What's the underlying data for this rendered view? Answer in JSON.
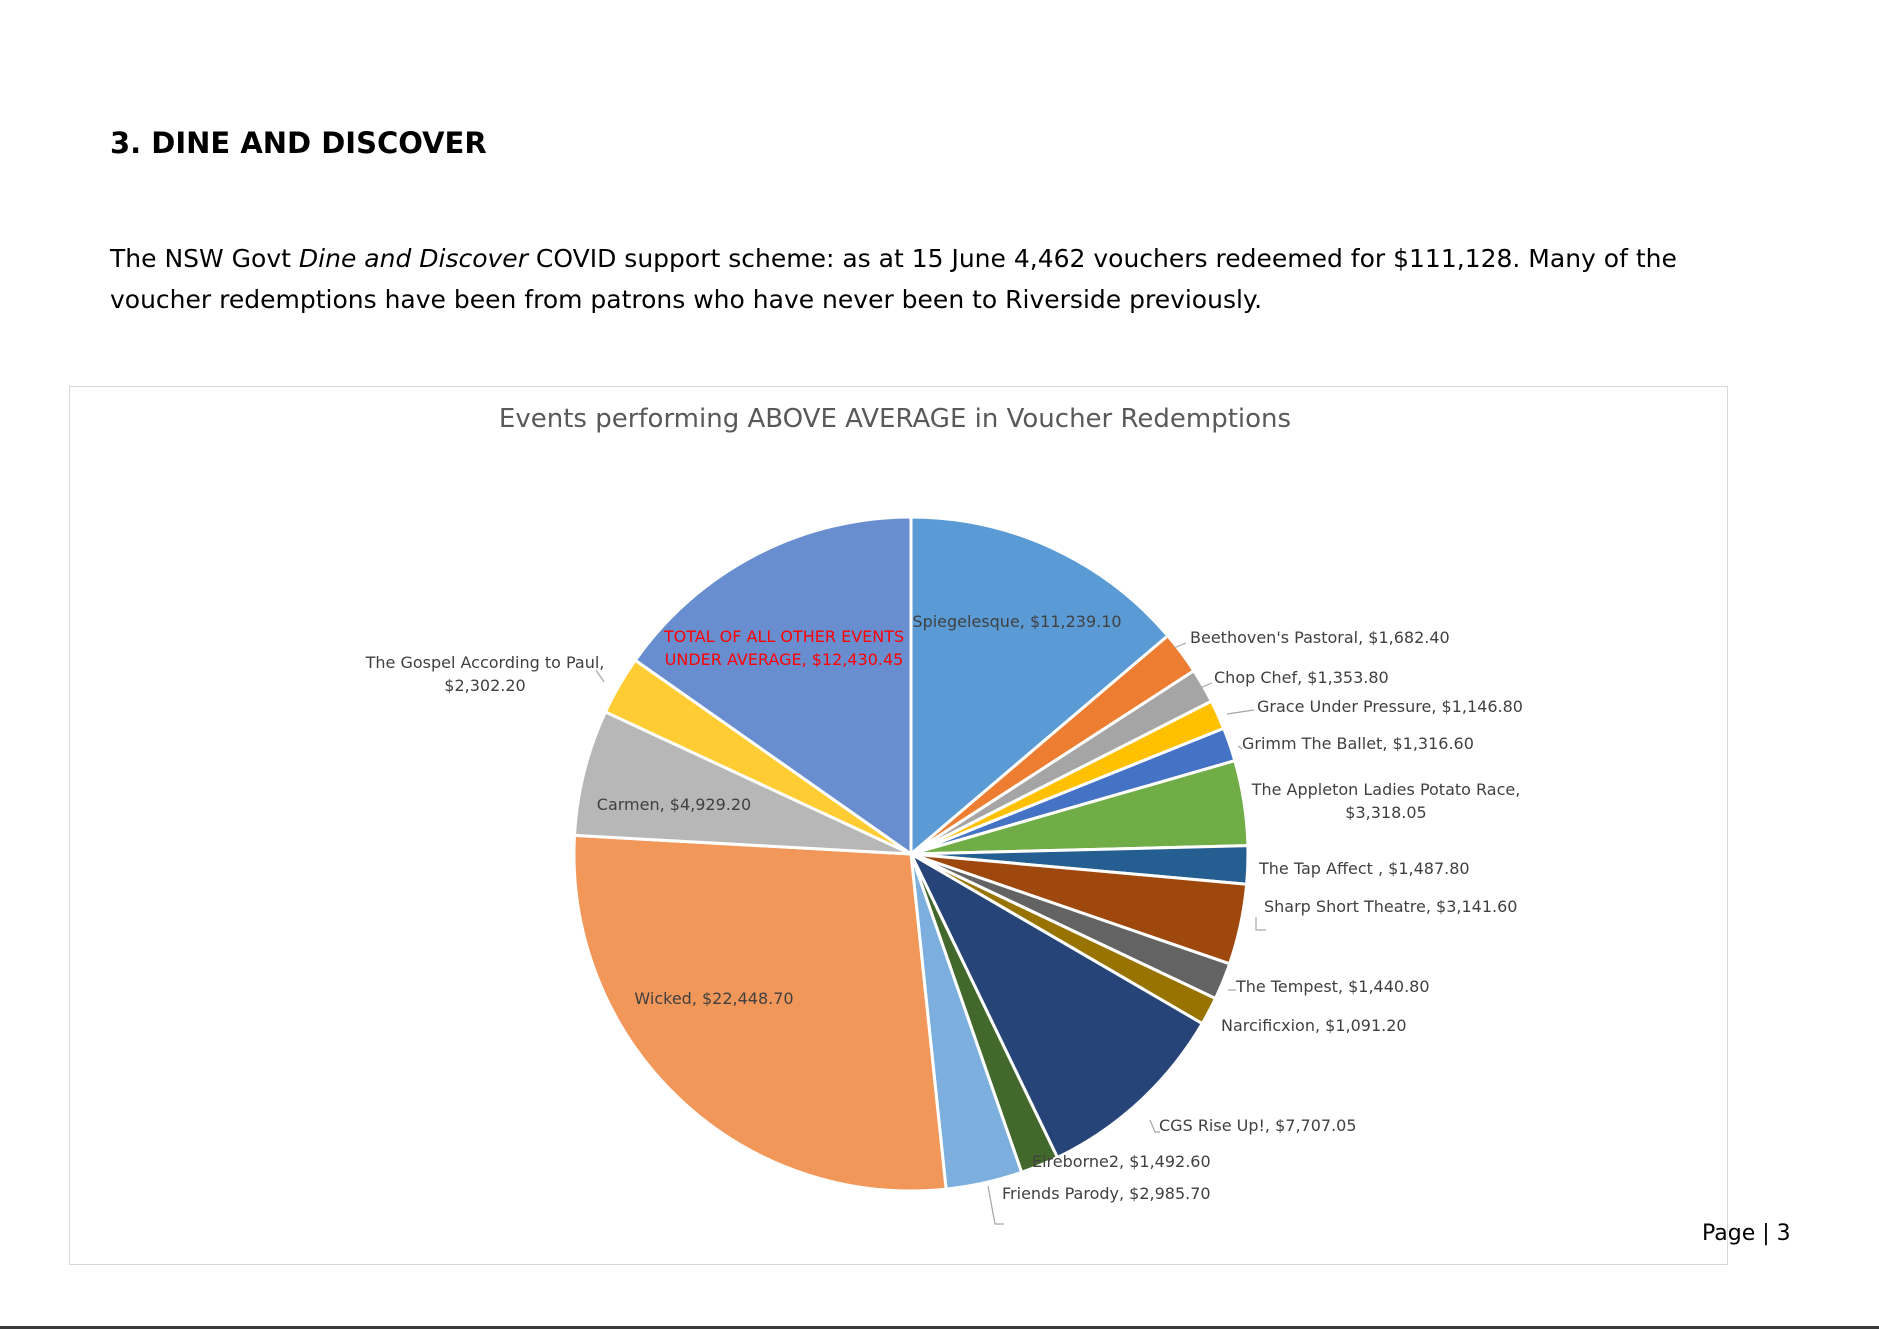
{
  "section_heading": "3. DINE AND DISCOVER",
  "paragraph": {
    "before_italic": "The NSW Govt ",
    "italic": "Dine and Discover",
    "after_italic_line1": " COVID support scheme: as at 15 June 4,462 vouchers redeemed for $111,128.  Many of the",
    "line2": "voucher redemptions have been from patrons who have never been to Riverside previously."
  },
  "page_number": "Page | 3",
  "chart_data": {
    "type": "pie",
    "title": "Events performing ABOVE AVERAGE in Voucher Redemptions",
    "start_angle_deg": 0,
    "direction": "clockwise",
    "slices": [
      {
        "name": "Spiegelesque",
        "label": "Spiegelesque, $11,239.10",
        "value": 11239.1,
        "color": "#5b9bd5",
        "label_mode": "inside",
        "label_color": "#404040"
      },
      {
        "name": "Beethoven's Pastoral",
        "label": "Beethoven's Pastoral, $1,682.40",
        "value": 1682.4,
        "color": "#ed7d31",
        "label_mode": "outside",
        "label_color": "#404040"
      },
      {
        "name": "Chop Chef",
        "label": "Chop Chef, $1,353.80",
        "value": 1353.8,
        "color": "#a5a5a5",
        "label_mode": "outside",
        "label_color": "#404040"
      },
      {
        "name": "Grace Under Pressure",
        "label": "Grace Under Pressure, $1,146.80",
        "value": 1146.8,
        "color": "#ffc000",
        "label_mode": "outside",
        "label_color": "#404040"
      },
      {
        "name": "Grimm The Ballet",
        "label": "Grimm The Ballet, $1,316.60",
        "value": 1316.6,
        "color": "#4472c4",
        "label_mode": "outside",
        "label_color": "#404040"
      },
      {
        "name": "The Appleton Ladies Potato Race",
        "label": "The Appleton Ladies Potato Race,|$3,318.05",
        "value": 3318.05,
        "color": "#70ad47",
        "label_mode": "outside",
        "label_color": "#404040"
      },
      {
        "name": "The Tap Affect",
        "label": "The Tap Affect , $1,487.80",
        "value": 1487.8,
        "color": "#255e91",
        "label_mode": "outside",
        "label_color": "#404040"
      },
      {
        "name": "Sharp Short Theatre",
        "label": "Sharp Short Theatre, $3,141.60",
        "value": 3141.6,
        "color": "#9e480e",
        "label_mode": "outside",
        "label_color": "#404040"
      },
      {
        "name": "The Tempest",
        "label": "The Tempest, $1,440.80",
        "value": 1440.8,
        "color": "#636363",
        "label_mode": "outside",
        "label_color": "#404040"
      },
      {
        "name": "Narcificxion",
        "label": "Narcificxion, $1,091.20",
        "value": 1091.2,
        "color": "#997300",
        "label_mode": "outside",
        "label_color": "#404040"
      },
      {
        "name": "CGS Rise Up!",
        "label": "CGS Rise Up!, $7,707.05",
        "value": 7707.05,
        "color": "#264478",
        "label_mode": "outside",
        "label_color": "#404040"
      },
      {
        "name": "Eireborne2",
        "label": "Eireborne2, $1,492.60",
        "value": 1492.6,
        "color": "#43682b",
        "label_mode": "outside",
        "label_color": "#404040"
      },
      {
        "name": "Friends Parody",
        "label": "Friends Parody, $2,985.70",
        "value": 2985.7,
        "color": "#7cafdd",
        "label_mode": "outside",
        "label_color": "#404040"
      },
      {
        "name": "Wicked",
        "label": "Wicked, $22,448.70",
        "value": 22448.7,
        "color": "#f1975a",
        "label_mode": "inside",
        "label_color": "#404040"
      },
      {
        "name": "Carmen",
        "label": "Carmen, $4,929.20",
        "value": 4929.2,
        "color": "#b7b7b7",
        "label_mode": "inside",
        "label_color": "#404040"
      },
      {
        "name": "The Gospel According to Paul",
        "label": "The Gospel According to Paul,|$2,302.20",
        "value": 2302.2,
        "color": "#ffcd33",
        "label_mode": "outside",
        "label_color": "#404040"
      },
      {
        "name": "TOTAL OF ALL OTHER EVENTS UNDER AVERAGE",
        "label": "TOTAL OF ALL OTHER EVENTS|UNDER AVERAGE, $12,430.45",
        "value": 12430.45,
        "color": "#698ed0",
        "label_mode": "inside",
        "label_color": "#ff0000"
      }
    ]
  }
}
